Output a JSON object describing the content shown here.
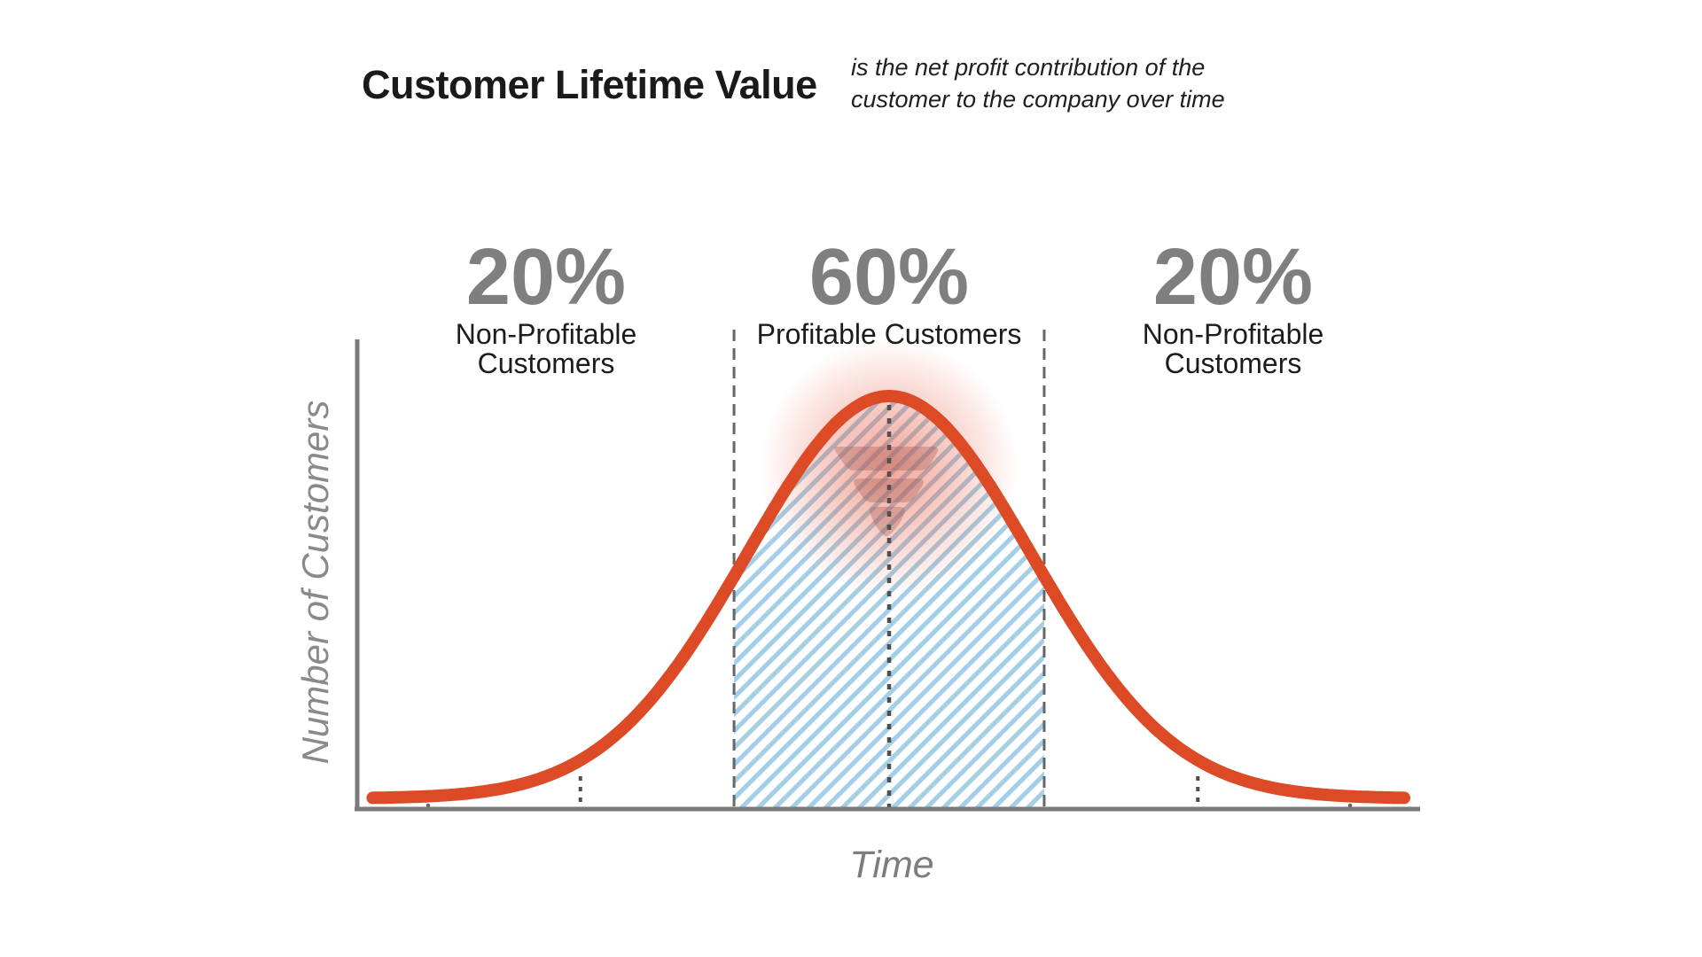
{
  "header": {
    "title": "Customer Lifetime Value",
    "subtitle_line1": "is the net profit contribution of the",
    "subtitle_line2": "customer to the company over time"
  },
  "sections": [
    {
      "percent": "20%",
      "label_line1": "Non-Profitable",
      "label_line2": "Customers"
    },
    {
      "percent": "60%",
      "label_line1": "Profitable Customers",
      "label_line2": ""
    },
    {
      "percent": "20%",
      "label_line1": "Non-Profitable",
      "label_line2": "Customers"
    }
  ],
  "axes": {
    "x_label": "Time",
    "y_label": "Number of Customers"
  },
  "chart_data": {
    "type": "area",
    "title": "Customer Lifetime Value",
    "xlabel": "Time",
    "ylabel": "Number of Customers",
    "description": "Bell-shaped (normal) distribution of number of customers over time, split into 20% non-profitable, 60% profitable (hatched), 20% non-profitable segments",
    "curve": {
      "shape": "gaussian",
      "mu_sigma": 0,
      "peak_normalized": 1,
      "x_range_sigma": [
        -3.63,
        3.62
      ]
    },
    "segments": [
      {
        "share_percent": 20,
        "label": "Non-Profitable Customers",
        "range_sigma": [
          -3.63,
          -1.09
        ],
        "hatched": false
      },
      {
        "share_percent": 60,
        "label": "Profitable Customers",
        "range_sigma": [
          -1.09,
          1.09
        ],
        "hatched": true
      },
      {
        "share_percent": 20,
        "label": "Non-Profitable Customers",
        "range_sigma": [
          1.09,
          3.62
        ],
        "hatched": false
      }
    ],
    "boundaries_sigma": [
      -1.09,
      1.09
    ],
    "mean_line_sigma": 0,
    "tick_marks_sigma": [
      -2.17,
      2.17
    ],
    "minor_dots_sigma": [
      -3.24,
      3.24
    ],
    "grid": false,
    "legend": false,
    "annotations": [
      "pink radial glow highlight at curve peak",
      "semi-transparent funnel logo watermark below peak"
    ]
  },
  "colors": {
    "curve": "#DC4A26",
    "hatch": "#A5CFE6",
    "glow": "#E64D32",
    "axis": "#7A7A7A",
    "dashed_line": "#666666",
    "dotted_line": "#4F4F4F",
    "percent_text": "#7F7F7F",
    "label_text": "#1C1C1C",
    "title_text": "#1A1A1A",
    "axis_label_text": "#8A8A8A",
    "watermark": "#9C5550",
    "background": "#FFFFFF"
  }
}
